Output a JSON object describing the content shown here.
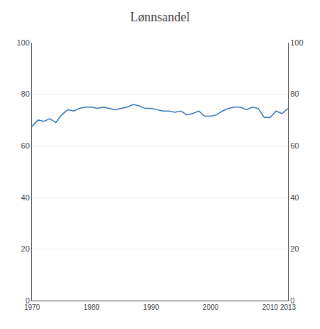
{
  "chart_data": {
    "type": "line",
    "title": "Lønnsandel",
    "x": [
      1970,
      1971,
      1972,
      1973,
      1974,
      1975,
      1976,
      1977,
      1978,
      1979,
      1980,
      1981,
      1982,
      1983,
      1984,
      1985,
      1986,
      1987,
      1988,
      1989,
      1990,
      1991,
      1992,
      1993,
      1994,
      1995,
      1996,
      1997,
      1998,
      1999,
      2000,
      2001,
      2002,
      2003,
      2004,
      2005,
      2006,
      2007,
      2008,
      2009,
      2010,
      2011,
      2012,
      2013
    ],
    "values": [
      67.5,
      70.0,
      69.5,
      70.5,
      69.0,
      72.0,
      74.0,
      73.5,
      74.5,
      75.0,
      75.0,
      74.5,
      75.0,
      74.5,
      74.0,
      74.5,
      75.0,
      76.0,
      75.5,
      74.5,
      74.5,
      74.0,
      73.5,
      73.5,
      73.0,
      73.5,
      72.0,
      72.5,
      73.5,
      71.5,
      71.5,
      72.0,
      73.5,
      74.5,
      75.0,
      75.0,
      74.0,
      75.0,
      74.5,
      71.0,
      71.0,
      73.5,
      72.5,
      74.5
    ],
    "color": "#2E75B6",
    "xlim": [
      1970,
      2013
    ],
    "xticks": [
      1970,
      1980,
      1990,
      2000,
      2010,
      2013
    ],
    "ylim": [
      0,
      100
    ],
    "yticks": [
      0,
      20,
      40,
      60,
      80,
      100
    ],
    "y2lim": [
      0,
      100
    ],
    "y2ticks": [
      0,
      20,
      40,
      60,
      80,
      100
    ],
    "grid": true
  }
}
